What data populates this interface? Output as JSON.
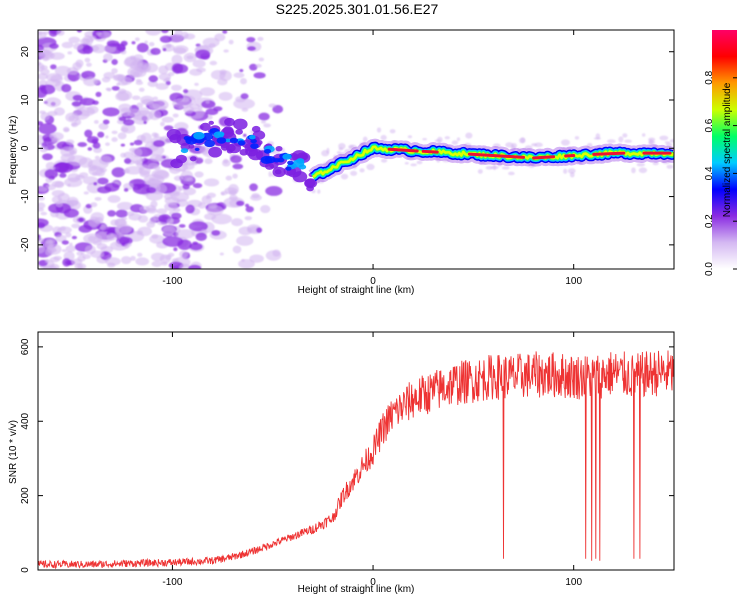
{
  "title": "S225.2025.301.01.56.E27",
  "chart_data": [
    {
      "type": "heatmap",
      "title": "S225.2025.301.01.56.E27",
      "xlabel": "Height of straight line (km)",
      "ylabel": "Frequency (Hz)",
      "xlim": [
        -167,
        150
      ],
      "ylim": [
        -25,
        24.5
      ],
      "x_ticks": [
        -100,
        0,
        100
      ],
      "x_tick_labels": [
        "-100",
        "0",
        "100"
      ],
      "y_ticks": [
        -20,
        -10,
        0,
        10,
        20
      ],
      "y_tick_labels": [
        "-20",
        "-10",
        "0",
        "10",
        "20"
      ],
      "colorbar": {
        "label": "Normalized spectral amplitude",
        "range": [
          0,
          1
        ],
        "ticks": [
          0.0,
          0.2,
          0.4,
          0.6,
          0.8
        ],
        "tick_labels": [
          "0.0",
          "0.2",
          "0.4",
          "0.6",
          "0.8"
        ],
        "colors": [
          "#ffffff",
          "#d4b8f2",
          "#8a2be2",
          "#0000ff",
          "#00ccff",
          "#00ff66",
          "#ccff00",
          "#ff9900",
          "#ff0000",
          "#ff0066"
        ]
      },
      "ridge": {
        "description": "dominant spectral line",
        "x": [
          -100,
          -90,
          -80,
          -70,
          -60,
          -50,
          -40,
          -30,
          -20,
          -10,
          0,
          20,
          40,
          60,
          80,
          100,
          120,
          150
        ],
        "y": [
          0,
          1,
          2,
          2,
          1,
          -2,
          -3,
          -6,
          -4,
          -2,
          0,
          -0.5,
          -1,
          -1.5,
          -2,
          -1.5,
          -1,
          -1
        ]
      }
    },
    {
      "type": "line",
      "xlabel": "Height of straight line (km)",
      "ylabel": "SNR (10 * v/v)",
      "xlim": [
        -167,
        150
      ],
      "ylim": [
        0,
        640
      ],
      "x_ticks": [
        -100,
        0,
        100
      ],
      "x_tick_labels": [
        "-100",
        "0",
        "100"
      ],
      "y_ticks": [
        0,
        200,
        400,
        600
      ],
      "y_tick_labels": [
        "0",
        "200",
        "400",
        "600"
      ],
      "color": "#ee3333",
      "series": [
        {
          "name": "SNR",
          "x": [
            -167,
            -140,
            -120,
            -100,
            -80,
            -70,
            -60,
            -50,
            -40,
            -30,
            -20,
            -15,
            -10,
            -5,
            0,
            5,
            10,
            20,
            30,
            40,
            50,
            60,
            70,
            80,
            90,
            100,
            110,
            120,
            130,
            140,
            150
          ],
          "values": [
            15,
            15,
            18,
            20,
            25,
            35,
            50,
            70,
            90,
            110,
            140,
            200,
            240,
            280,
            320,
            380,
            420,
            460,
            480,
            500,
            510,
            520,
            520,
            525,
            525,
            520,
            520,
            530,
            520,
            530,
            530
          ]
        }
      ],
      "dropouts": [
        {
          "x": 65,
          "value": 30
        },
        {
          "x": 106,
          "value": 30
        },
        {
          "x": 109,
          "value": 25
        },
        {
          "x": 111,
          "value": 30
        },
        {
          "x": 113,
          "value": 25
        },
        {
          "x": 130,
          "value": 30
        },
        {
          "x": 133,
          "value": 30
        }
      ]
    }
  ]
}
